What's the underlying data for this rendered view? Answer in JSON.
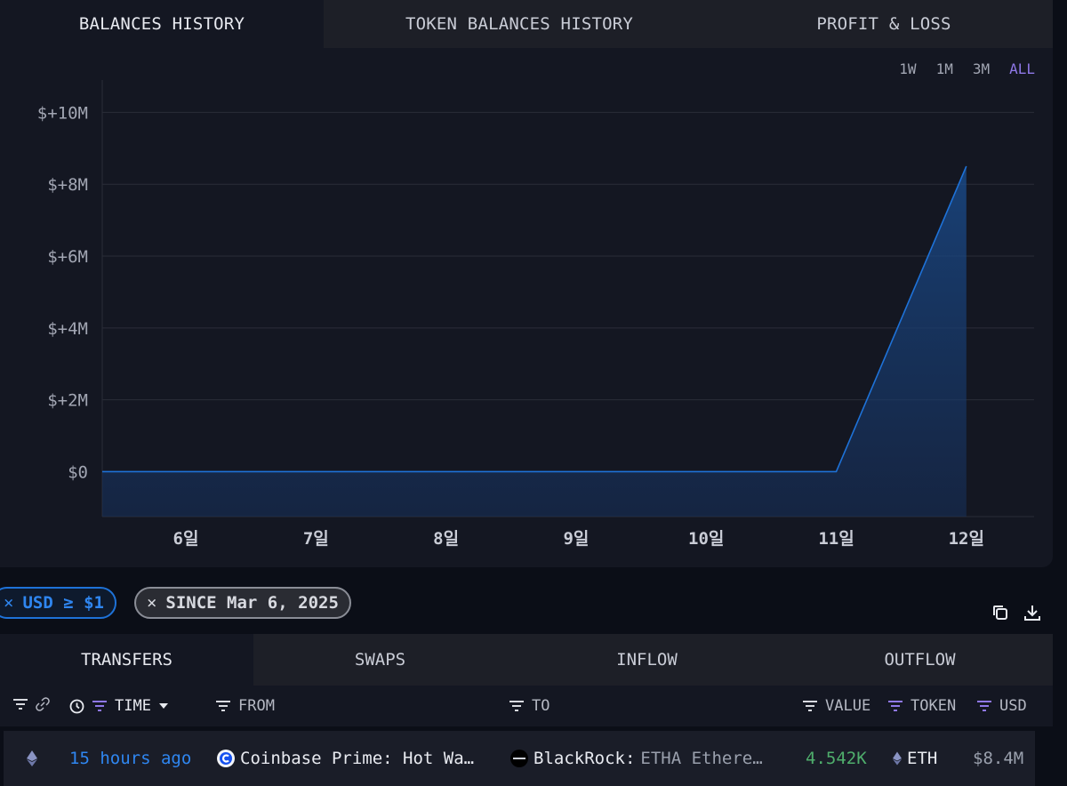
{
  "top_tabs": [
    {
      "label": "BALANCES HISTORY",
      "active": true
    },
    {
      "label": "TOKEN BALANCES HISTORY",
      "active": false
    },
    {
      "label": "PROFIT & LOSS",
      "active": false
    }
  ],
  "time_ranges": [
    {
      "label": "1W",
      "active": false
    },
    {
      "label": "1M",
      "active": false
    },
    {
      "label": "3M",
      "active": false
    },
    {
      "label": "ALL",
      "active": true
    }
  ],
  "chart_data": {
    "type": "area",
    "title": "",
    "xlabel": "",
    "ylabel": "",
    "categories": [
      "6일",
      "7일",
      "8일",
      "9일",
      "10일",
      "11일",
      "12일"
    ],
    "x": [
      "5.3일",
      "6일",
      "7일",
      "8일",
      "9일",
      "10일",
      "11일",
      "12일"
    ],
    "values": [
      0,
      0,
      0,
      0,
      0,
      0,
      0,
      8.5
    ],
    "y_unit": "M USD",
    "y_ticks": [
      0,
      2,
      4,
      6,
      8,
      10
    ],
    "y_tick_labels": [
      "$0",
      "$+2M",
      "$+4M",
      "$+6M",
      "$+8M",
      "$+10M"
    ],
    "ylim": [
      -1.25,
      10.9
    ],
    "grid": true,
    "line_color": "#1e72d8"
  },
  "filters": {
    "usd": {
      "close": "×",
      "label": "USD ≥ $1"
    },
    "since": {
      "close": "×",
      "label": "SINCE Mar 6, 2025"
    }
  },
  "actions": [
    {
      "icon": "copy-icon"
    },
    {
      "icon": "download-icon"
    }
  ],
  "bottom_tabs": [
    {
      "label": "TRANSFERS",
      "active": true
    },
    {
      "label": "SWAPS",
      "active": false
    },
    {
      "label": "INFLOW",
      "active": false
    },
    {
      "label": "OUTFLOW",
      "active": false
    }
  ],
  "table": {
    "columns": {
      "time": "TIME",
      "from": "FROM",
      "to": "TO",
      "value": "VALUE",
      "token": "TOKEN",
      "usd": "USD"
    },
    "rows": [
      {
        "chain_icon": "ethereum-icon",
        "time": "15 hours ago",
        "from_icon": "coinbase-icon",
        "from": "Coinbase Prime: Hot Wa…",
        "to_icon": "blackrock-icon",
        "to_name": "BlackRock:",
        "to_detail": "ETHA Ethere…",
        "value": "4.542K",
        "token": "ETH",
        "usd": "$8.4M"
      }
    ]
  },
  "colors": {
    "accent_blue": "#2f86f0",
    "accent_purple": "#8f78e8",
    "value_green": "#4fae6c"
  }
}
